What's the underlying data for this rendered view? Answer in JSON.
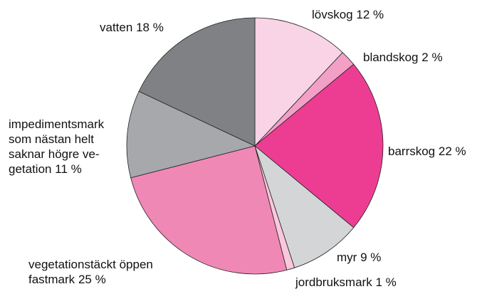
{
  "chart_data": {
    "type": "pie",
    "categories": [
      "lövskog",
      "blandskog",
      "barrskog",
      "myr",
      "jordbruksmark",
      "vegetationstäckt öppen\nfastmark",
      "impedimentsmark\nsom nästan helt\nsaknar högre ve-\ngetation",
      "vatten"
    ],
    "values": [
      12,
      2,
      22,
      9,
      1,
      25,
      11,
      18
    ],
    "value_labels": [
      "12 %",
      "2 %",
      "22 %",
      "9 %",
      "1 %",
      "25 %",
      "11 %",
      "18 %"
    ],
    "colors": [
      "#f9d3e6",
      "#f2a0c6",
      "#ec3d93",
      "#d4d5d7",
      "#f9c8dc",
      "#f088b5",
      "#a7a8ab",
      "#808184"
    ]
  }
}
